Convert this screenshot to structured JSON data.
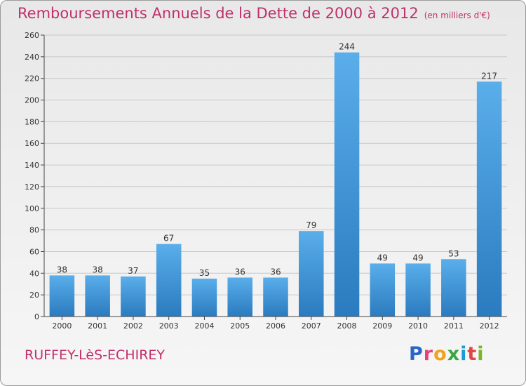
{
  "header": {
    "title": "Remboursements Annuels de la Dette de 2000 à 2012",
    "unit": "(en milliers d'€)"
  },
  "footer": {
    "commune": "RUFFEY-LèS-ECHIREY"
  },
  "logo": {
    "text": "Proxiti",
    "letter_colors": [
      "#2a64c9",
      "#e8417a",
      "#f0a21a",
      "#3aa640",
      "#1a9ad6",
      "#e04646",
      "#7ab52a"
    ]
  },
  "chart_data": {
    "type": "bar",
    "title": "Remboursements Annuels de la Dette de 2000 à 2012",
    "categories": [
      "2000",
      "2001",
      "2002",
      "2003",
      "2004",
      "2005",
      "2006",
      "2007",
      "2008",
      "2009",
      "2010",
      "2011",
      "2012"
    ],
    "values": [
      38,
      38,
      37,
      67,
      35,
      36,
      36,
      79,
      244,
      49,
      49,
      53,
      217
    ],
    "ylim": [
      0,
      260
    ],
    "yticks": [
      0,
      20,
      40,
      60,
      80,
      100,
      120,
      140,
      160,
      180,
      200,
      220,
      240,
      260
    ],
    "grid": true,
    "colors": {
      "bar_light": "#5aaeea",
      "bar_dark": "#2a7bbf",
      "grid": "#c8c8c8"
    }
  }
}
